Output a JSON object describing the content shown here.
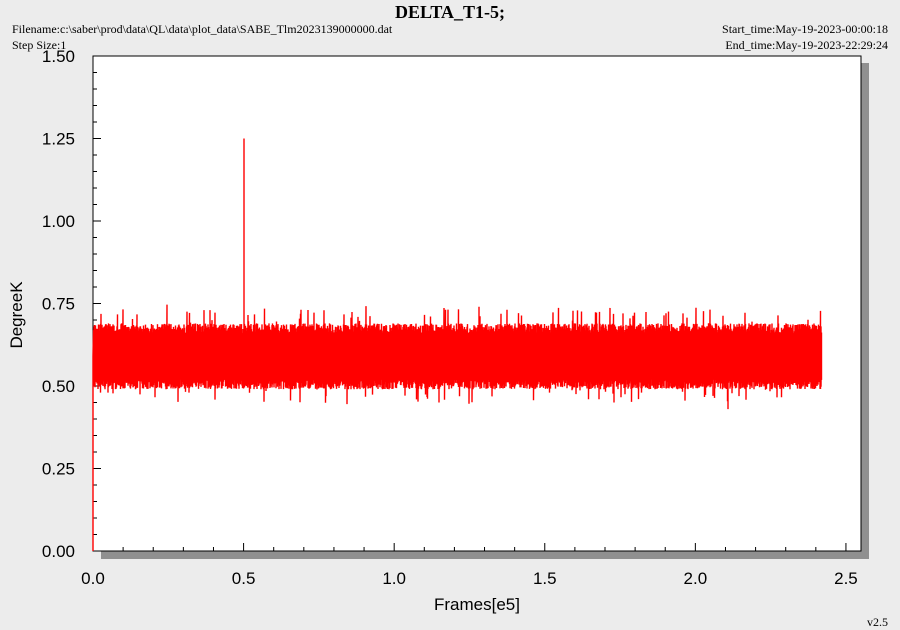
{
  "header": {
    "title": "DELTA_T1-5;",
    "filename": "Filename:c:\\saber\\prod\\data\\QL\\data\\plot_data\\SABE_Tlm2023139000000.dat",
    "step_size": "Step Size:1",
    "start_time": "Start_time:May-19-2023-00:00:18",
    "end_time": "End_time:May-19-2023-22:29:24"
  },
  "footer": {
    "version": "v2.5"
  },
  "colors": {
    "series": "#ff0000",
    "background": "#ececec",
    "plot_bg": "#ffffff",
    "shadow": "#909090"
  },
  "chart_data": {
    "type": "line",
    "title": "DELTA_T1-5;",
    "xlabel": "Frames[e5]",
    "ylabel": "DegreeK",
    "xlim": [
      0,
      2.55
    ],
    "ylim": [
      0,
      1.5
    ],
    "x_ticks": [
      "0.0",
      "0.5",
      "1.0",
      "1.5",
      "2.0",
      "2.5"
    ],
    "y_ticks": [
      "0.00",
      "0.25",
      "0.50",
      "0.75",
      "1.00",
      "1.25",
      "1.50"
    ],
    "grid": false,
    "series": [
      {
        "color": "#ff0000",
        "x_range": [
          0,
          2.42
        ],
        "band": [
          0.52,
          0.66
        ],
        "baseline": 0.59,
        "spikes": [
          {
            "x": 0.0,
            "y": 0.0
          },
          {
            "x": 0.5,
            "y": 1.25
          },
          {
            "x": 0.37,
            "y": 0.73
          },
          {
            "x": 0.39,
            "y": 0.73
          },
          {
            "x": 1.28,
            "y": 0.74
          },
          {
            "x": 1.76,
            "y": 0.72
          },
          {
            "x": 1.96,
            "y": 0.72
          },
          {
            "x": 1.15,
            "y": 0.45
          },
          {
            "x": 1.68,
            "y": 0.46
          },
          {
            "x": 1.73,
            "y": 0.45
          },
          {
            "x": 2.11,
            "y": 0.43
          },
          {
            "x": 2.06,
            "y": 0.47
          },
          {
            "x": 0.05,
            "y": 0.48
          },
          {
            "x": 0.32,
            "y": 0.48
          }
        ]
      }
    ]
  }
}
